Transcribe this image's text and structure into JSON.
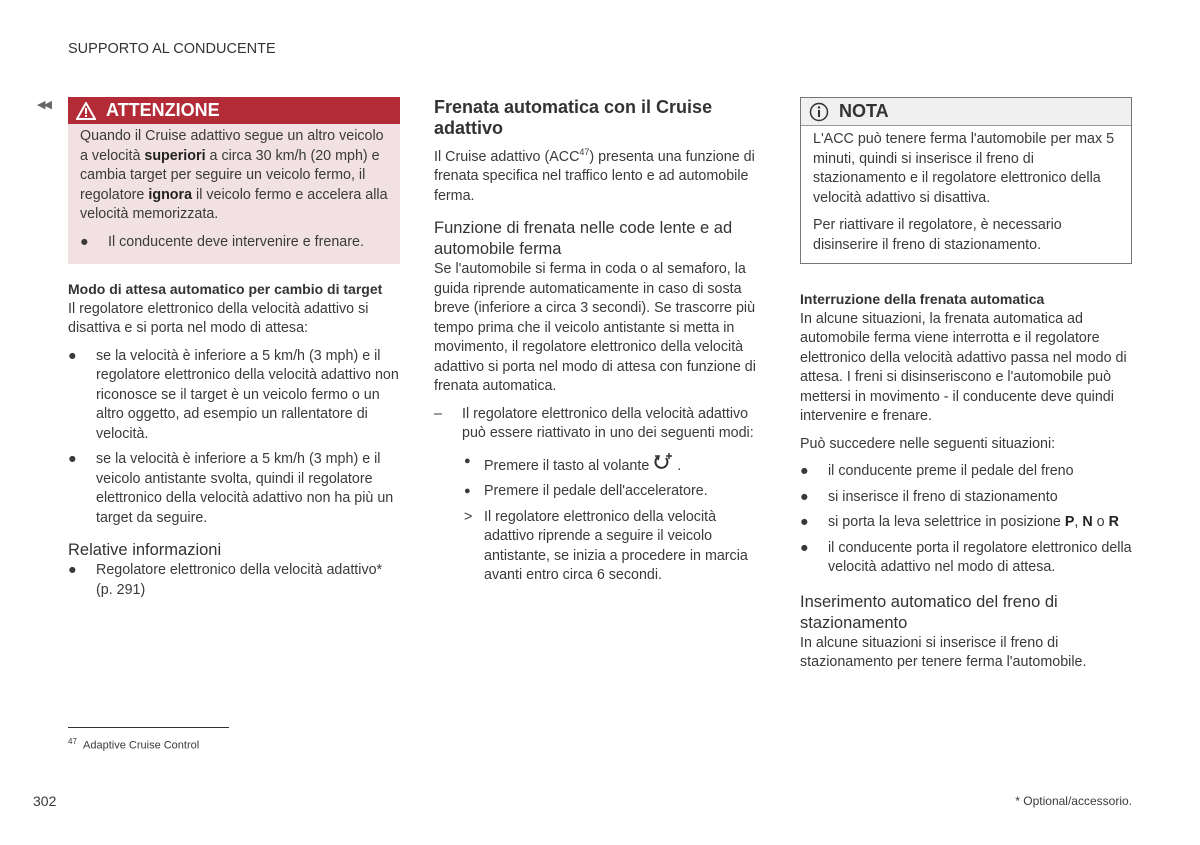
{
  "header": {
    "section": "SUPPORTO AL CONDUCENTE",
    "back_icon": "double-left-arrow"
  },
  "left": {
    "warning": {
      "title": "ATTENZIONE",
      "icon": "warning-triangle",
      "text_parts": [
        "Quando il Cruise adattivo segue un altro veicolo a velocità ",
        "superiori",
        " a circa 30 km/h (20 mph) e cambia target per seguire un veicolo fermo, il regolatore ",
        "ignora",
        " il veicolo fermo e accelera alla velocità memorizzata."
      ],
      "bullet": "Il conducente deve intervenire e frenare.",
      "color": "#b32b37"
    },
    "subheading": "Modo di attesa automatico per cambio di target",
    "intro": "Il regolatore elettronico della velocità adattivo si disattiva e si porta nel modo di attesa:",
    "bullets": [
      "se la velocità è inferiore a 5 km/h (3 mph) e il regolatore elettronico della velocità adattivo non riconosce se il target è un veicolo fermo o un altro oggetto, ad esempio un rallentatore di velocità.",
      "se la velocità è inferiore a 5 km/h (3 mph) e il veicolo antistante svolta, quindi il regolatore elettronico della velocità adattivo non ha più un target da seguire."
    ],
    "related_title": "Relative informazioni",
    "related_link": "Regolatore elettronico della velocità adattivo* (p. 291)"
  },
  "middle": {
    "title": "Frenata automatica con il Cruise adattivo",
    "intro_a": "Il Cruise adattivo (ACC",
    "intro_sup": "47",
    "intro_b": ") presenta una funzione di frenata specifica nel traffico lento e ad automobile ferma.",
    "h3": "Funzione di frenata nelle code lente e ad automobile ferma",
    "para": "Se l'automobile si ferma in coda o al semaforo, la guida riprende automaticamente in caso di sosta breve (inferiore a circa 3 secondi). Se trascorre più tempo prima che il veicolo antistante si metta in movimento, il regolatore elettronico della velocità adattivo si porta nel modo di attesa con funzione di frenata automatica.",
    "step": "Il regolatore elettronico della velocità adattivo può essere riattivato in uno dei seguenti modi:",
    "options": [
      "Premere il tasto al volante",
      "Premere il pedale dell'acceleratore."
    ],
    "resume_icon": "resume-plus",
    "result": "Il regolatore elettronico della velocità adattivo riprende a seguire il veicolo antistante, se inizia a procedere in marcia avanti entro circa 6 secondi."
  },
  "right": {
    "note": {
      "title": "NOTA",
      "icon": "info-circle",
      "p1": "L'ACC può tenere ferma l'automobile per max 5 minuti, quindi si inserisce il freno di stazionamento e il regolatore elettronico della velocità adattivo si disattiva.",
      "p2": "Per riattivare il regolatore, è necessario disinserire il freno di stazionamento."
    },
    "subheading": "Interruzione della frenata automatica",
    "para": "In alcune situazioni, la frenata automatica ad automobile ferma viene interrotta e il regolatore elettronico della velocità adattivo passa nel modo di attesa. I freni si disinseriscono e l'automobile può mettersi in movimento - il conducente deve quindi intervenire e frenare.",
    "para2": "Può succedere nelle seguenti situazioni:",
    "bullets": [
      "il conducente preme il pedale del freno",
      "si inserisce il freno di stazionamento"
    ],
    "gear_parts": [
      "si porta la leva selettrice in posizione ",
      "P",
      ", ",
      "N",
      " o ",
      "R"
    ],
    "bullet4": "il conducente porta il regolatore elettronico della velocità adattivo nel modo di attesa.",
    "h3": "Inserimento automatico del freno di stazionamento",
    "para3": "In alcune situazioni si inserisce il freno di stazionamento per tenere ferma l'automobile."
  },
  "footer": {
    "footnote_num": "47",
    "footnote": "Adaptive Cruise Control",
    "page_number": "302",
    "optional": "* Optional/accessorio."
  }
}
